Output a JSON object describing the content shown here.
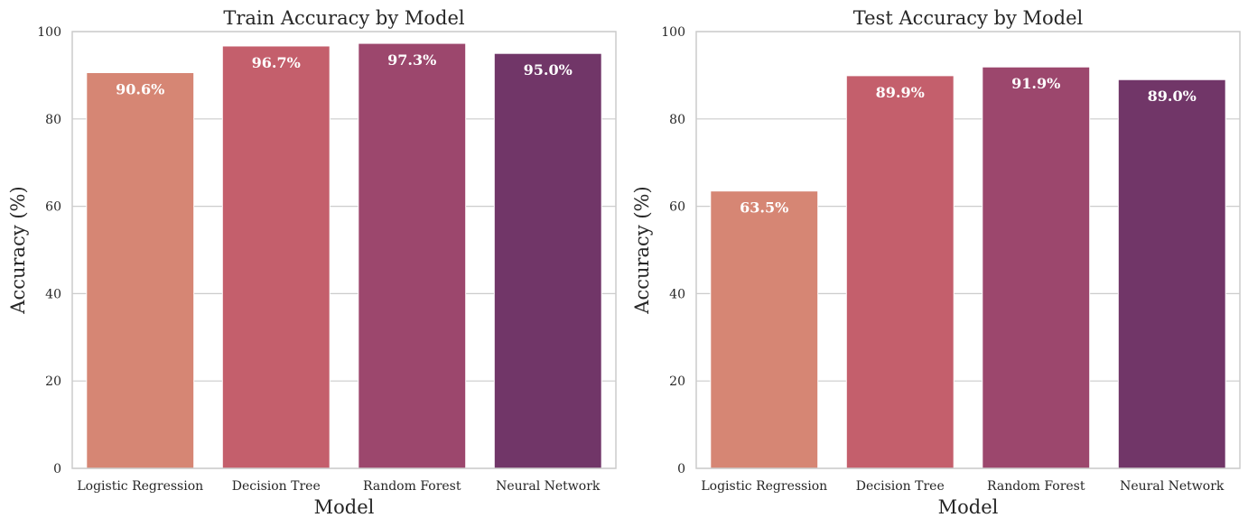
{
  "chart_data": [
    {
      "type": "bar",
      "title": "Train Accuracy by Model",
      "xlabel": "Model",
      "ylabel": "Accuracy (%)",
      "categories": [
        "Logistic Regression",
        "Decision Tree",
        "Random Forest",
        "Neural Network"
      ],
      "values": [
        90.6,
        96.7,
        97.3,
        95.0
      ],
      "data_labels": [
        "90.6%",
        "96.7%",
        "97.3%",
        "95.0%"
      ],
      "ylim": [
        0,
        100
      ],
      "yticks": [
        0,
        20,
        40,
        60,
        80,
        100
      ],
      "grid": "horizontal",
      "colors": [
        "#d68674",
        "#c45f6c",
        "#9c476d",
        "#713668"
      ]
    },
    {
      "type": "bar",
      "title": "Test Accuracy by Model",
      "xlabel": "Model",
      "ylabel": "Accuracy (%)",
      "categories": [
        "Logistic Regression",
        "Decision Tree",
        "Random Forest",
        "Neural Network"
      ],
      "values": [
        63.5,
        89.9,
        91.9,
        89.0
      ],
      "data_labels": [
        "63.5%",
        "89.9%",
        "91.9%",
        "89.0%"
      ],
      "ylim": [
        0,
        100
      ],
      "yticks": [
        0,
        20,
        40,
        60,
        80,
        100
      ],
      "grid": "horizontal",
      "colors": [
        "#d68674",
        "#c45f6c",
        "#9c476d",
        "#713668"
      ]
    }
  ]
}
